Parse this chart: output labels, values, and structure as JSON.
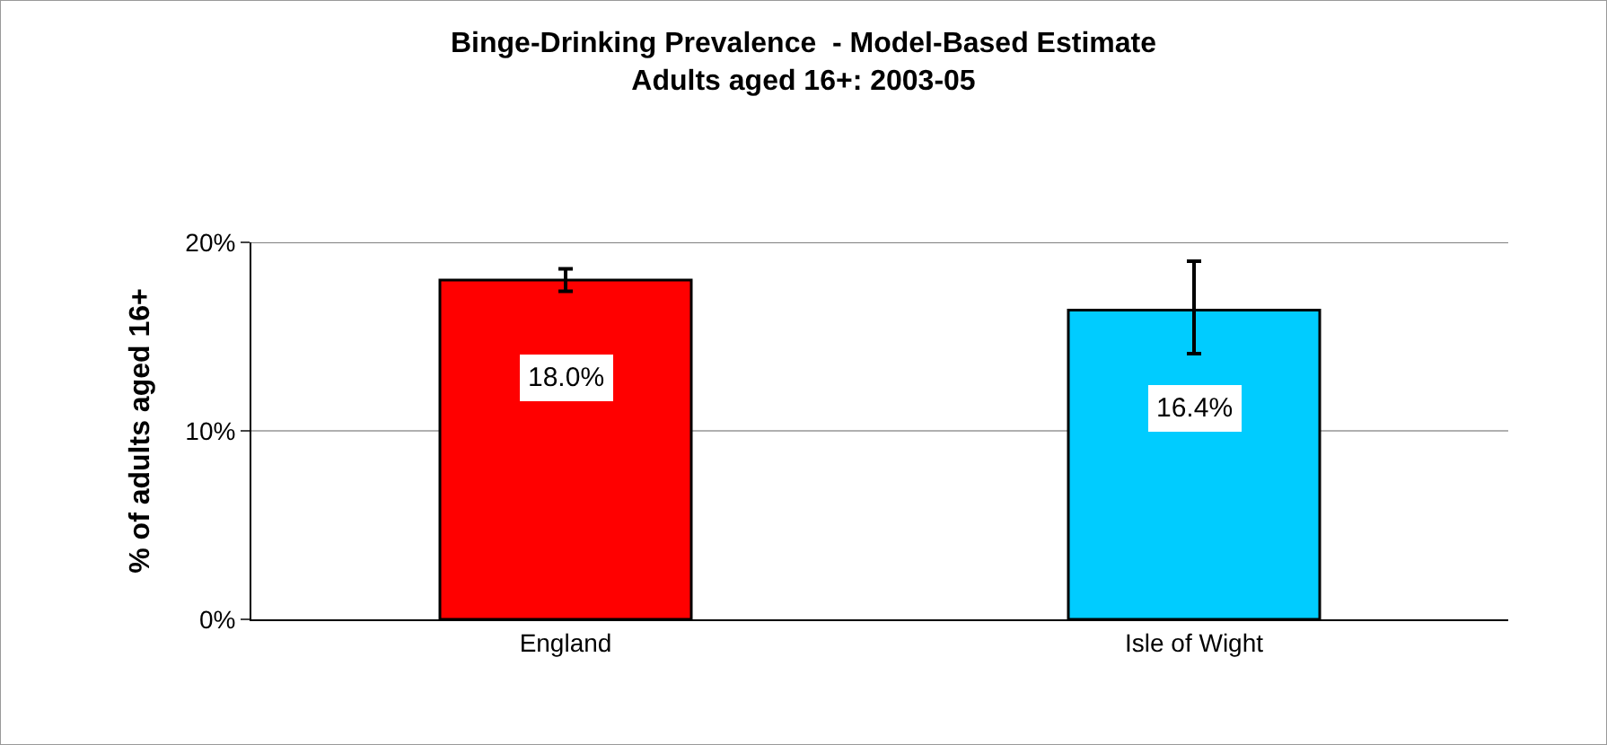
{
  "chart_data": {
    "type": "bar",
    "title": "Binge-Drinking Prevalence  - Model-Based Estimate\nAdults aged 16+: 2003-05",
    "ylabel": "% of adults aged 16+",
    "categories": [
      "England",
      "Isle of Wight"
    ],
    "values": [
      18.0,
      16.4
    ],
    "colors": [
      "#ff0000",
      "#00ccff"
    ],
    "errors": [
      [
        17.4,
        18.6
      ],
      [
        14.1,
        19.0
      ]
    ],
    "value_labels": [
      "18.0%",
      "16.4%"
    ],
    "ylim": [
      0,
      20
    ],
    "yticks": [
      {
        "value": 0,
        "label": "0%"
      },
      {
        "value": 10,
        "label": "10%"
      },
      {
        "value": 20,
        "label": "20%"
      }
    ],
    "grid": "y"
  }
}
